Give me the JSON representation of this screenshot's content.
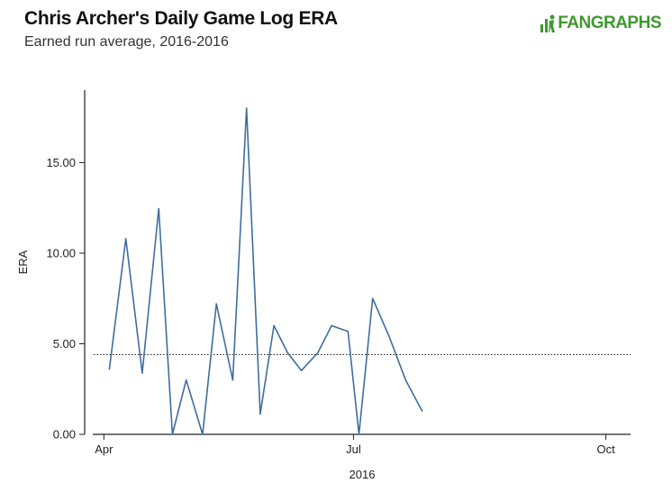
{
  "header": {
    "title": "Chris Archer's Daily Game Log ERA",
    "subtitle": "Earned run average, 2016-2016"
  },
  "logo": {
    "text": "FANGRAPHS",
    "icon": "fangraphs-logo-icon",
    "color": "#3d9a2e"
  },
  "chart_data": {
    "type": "line",
    "xlabel": "2016",
    "ylabel": "ERA",
    "xlim": [
      "2016-03-25",
      "2016-10-10"
    ],
    "ylim": [
      0,
      19
    ],
    "x_ticks": [
      {
        "label": "Apr",
        "date": "2016-04-01"
      },
      {
        "label": "Jul",
        "date": "2016-07-01"
      },
      {
        "label": "Oct",
        "date": "2016-10-01"
      }
    ],
    "y_ticks": [
      {
        "label": "0.00",
        "value": 0
      },
      {
        "label": "5.00",
        "value": 5
      },
      {
        "label": "10.00",
        "value": 10
      },
      {
        "label": "15.00",
        "value": 15
      }
    ],
    "reference_line": {
      "value": 4.4,
      "style": "dotted"
    },
    "series_color": "#3e6e9e",
    "grid": false,
    "series": [
      {
        "points": [
          {
            "x": "2016-04-03",
            "y": 3.6
          },
          {
            "x": "2016-04-09",
            "y": 10.8
          },
          {
            "x": "2016-04-15",
            "y": 3.38
          },
          {
            "x": "2016-04-21",
            "y": 12.46
          },
          {
            "x": "2016-04-26",
            "y": 0.0
          },
          {
            "x": "2016-05-01",
            "y": 3.0
          },
          {
            "x": "2016-05-07",
            "y": 0.0
          },
          {
            "x": "2016-05-12",
            "y": 7.2
          },
          {
            "x": "2016-05-18",
            "y": 3.0
          },
          {
            "x": "2016-05-23",
            "y": 18.0
          },
          {
            "x": "2016-05-28",
            "y": 1.13
          },
          {
            "x": "2016-06-02",
            "y": 6.0
          },
          {
            "x": "2016-06-07",
            "y": 4.5
          },
          {
            "x": "2016-06-12",
            "y": 3.52
          },
          {
            "x": "2016-06-18",
            "y": 4.5
          },
          {
            "x": "2016-06-23",
            "y": 6.0
          },
          {
            "x": "2016-06-29",
            "y": 5.68
          },
          {
            "x": "2016-07-03",
            "y": 0.0
          },
          {
            "x": "2016-07-08",
            "y": 7.5
          },
          {
            "x": "2016-07-14",
            "y": 5.4
          },
          {
            "x": "2016-07-20",
            "y": 3.0
          },
          {
            "x": "2016-07-26",
            "y": 1.29
          }
        ]
      }
    ]
  }
}
